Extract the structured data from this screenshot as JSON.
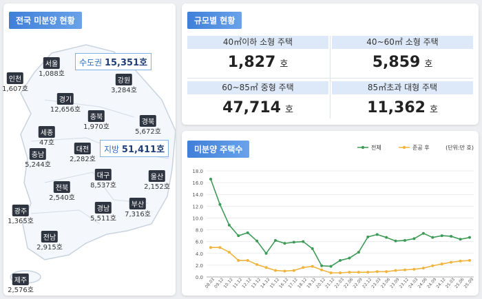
{
  "map_panel": {
    "title": "전국 미분양 현황",
    "summary": [
      {
        "label": "수도권",
        "value": "15,351호"
      },
      {
        "label": "지방",
        "value": "51,411호"
      }
    ],
    "regions": [
      {
        "name": "서울",
        "value": "1,088호"
      },
      {
        "name": "인천",
        "value": "1,607호"
      },
      {
        "name": "경기",
        "value": "12,656호"
      },
      {
        "name": "강원",
        "value": "3,284호"
      },
      {
        "name": "충북",
        "value": "1,970호"
      },
      {
        "name": "경북",
        "value": "5,672호"
      },
      {
        "name": "세종",
        "value": "47호"
      },
      {
        "name": "충남",
        "value": "5,244호"
      },
      {
        "name": "대전",
        "value": "2,282호"
      },
      {
        "name": "대구",
        "value": "8,537호"
      },
      {
        "name": "울산",
        "value": "2,152호"
      },
      {
        "name": "전북",
        "value": "2,540호"
      },
      {
        "name": "경남",
        "value": "5,511호"
      },
      {
        "name": "부산",
        "value": "7,316호"
      },
      {
        "name": "광주",
        "value": "1,365호"
      },
      {
        "name": "전남",
        "value": "2,915호"
      },
      {
        "name": "제주",
        "value": "2,576호"
      }
    ]
  },
  "size_panel": {
    "title": "규모별 현황",
    "cells": [
      {
        "label": "40㎡이하 소형 주택",
        "value": "1,827",
        "unit": "호"
      },
      {
        "label": "40~60㎡ 소형 주택",
        "value": "5,859",
        "unit": "호"
      },
      {
        "label": "60~85㎡ 중형 주택",
        "value": "47,714",
        "unit": "호"
      },
      {
        "label": "85㎡초과 대형 주택",
        "value": "11,362",
        "unit": "호"
      }
    ]
  },
  "chart_data": {
    "type": "line",
    "title": "미분양 주택수",
    "unit_note": "(단위:만 호)",
    "categories": [
      "08.03",
      "09.12",
      "10.12",
      "11.12",
      "12.12",
      "13.12",
      "14.12",
      "15.12",
      "16.12",
      "17.12",
      "18.12",
      "19.12",
      "20.12",
      "21.12",
      "22.03",
      "22.06",
      "22.09",
      "22.12",
      "23.03",
      "23.06",
      "23.09",
      "23.12",
      "24.03",
      "24.06",
      "24.09",
      "24.12",
      "25.03",
      "25.06",
      "25.09"
    ],
    "series": [
      {
        "name": "전체",
        "color": "#3d9a57",
        "values": [
          16.6,
          12.3,
          8.8,
          7.0,
          7.5,
          6.1,
          4.0,
          6.2,
          5.7,
          5.9,
          6.0,
          4.8,
          1.9,
          1.8,
          2.8,
          3.2,
          4.2,
          6.8,
          7.2,
          6.7,
          6.1,
          6.2,
          6.5,
          7.4,
          6.7,
          7.0,
          6.9,
          6.4,
          6.7
        ]
      },
      {
        "name": "준공 후",
        "color": "#f0b33c",
        "values": [
          5.0,
          5.0,
          4.2,
          2.8,
          2.8,
          2.1,
          1.6,
          1.1,
          1.0,
          1.1,
          1.6,
          1.8,
          1.2,
          0.7,
          0.7,
          0.8,
          0.8,
          0.8,
          0.9,
          0.9,
          1.1,
          1.2,
          1.3,
          1.5,
          1.9,
          2.2,
          2.5,
          2.7,
          2.8
        ]
      }
    ],
    "ylim": [
      0,
      18
    ],
    "yticks": [
      {
        "value": 0,
        "label": "0.0"
      },
      {
        "value": 2,
        "label": "2.0"
      },
      {
        "value": 4,
        "label": "4.0"
      },
      {
        "value": 6,
        "label": "6.0"
      },
      {
        "value": 8,
        "label": "8.0"
      },
      {
        "value": 10,
        "label": "10.0"
      },
      {
        "value": 12,
        "label": "12.0"
      },
      {
        "value": 14,
        "label": "14.0"
      },
      {
        "value": 16,
        "label": "16.0"
      },
      {
        "value": 18,
        "label": "18.0"
      }
    ],
    "grid": true
  }
}
